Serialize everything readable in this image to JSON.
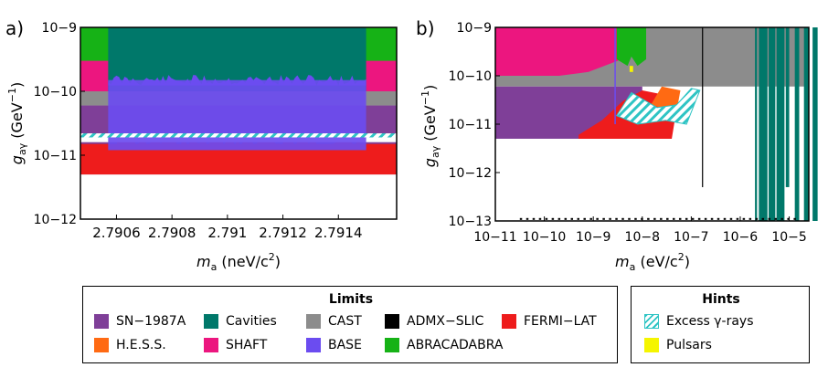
{
  "chart_data": [
    {
      "panel_label": "a)",
      "type": "area",
      "x_ticks": [
        "2.7906",
        "2.7908",
        "2.791",
        "2.7912",
        "2.7914"
      ],
      "x_tick_values": [
        2.7906,
        2.7908,
        2.791,
        2.7912,
        2.7914
      ],
      "xlim": [
        2.79047,
        2.79161
      ],
      "ylim_exponent": [
        -12,
        -9
      ],
      "y_ticks": [
        "10−12",
        "10−11",
        "10−10",
        "10−9"
      ],
      "xlabel": {
        "sym": "m",
        "sub": "a",
        "text": " (neV/c",
        "sup": "2",
        "end": ")"
      },
      "ylabel": {
        "sym": "g",
        "sub": "aγ",
        "text": " (GeV",
        "sup": "−1",
        "end": ")"
      },
      "regions": [
        {
          "name": "SN−1987A",
          "x": [
            2.79047,
            2.79161
          ],
          "g": [
            5e-12,
            6e-11
          ]
        },
        {
          "name": "CAST",
          "x": [
            2.79047,
            2.79161
          ],
          "g": [
            6e-11,
            1e-10
          ]
        },
        {
          "name": "FERMI−LAT",
          "x": [
            2.79047,
            2.79161
          ],
          "g": [
            5e-12,
            1.5e-11
          ]
        },
        {
          "name": "ABRACADABRA",
          "x": [
            2.79047,
            2.79161
          ],
          "g": [
            2e-10,
            1e-09
          ]
        },
        {
          "name": "Cavities",
          "x": [
            2.79057,
            2.7915
          ],
          "g": [
            1e-10,
            1e-09
          ]
        },
        {
          "name": "SHAFT",
          "x": [
            2.79047,
            2.79161
          ],
          "g": [
            8e-11,
            3e-10
          ]
        },
        {
          "name": "BASE",
          "x": [
            2.79057,
            2.7915
          ],
          "g": [
            1.2e-11,
            1.5e-10
          ]
        },
        {
          "name": "Excess γ-rays",
          "x": [
            2.79047,
            2.79161
          ],
          "g": [
            1.9e-11,
            2.2e-11
          ]
        }
      ]
    },
    {
      "panel_label": "b)",
      "type": "area",
      "x_scale": "log",
      "xlim_exponent": [
        -11,
        -4.6
      ],
      "x_ticks": [
        "10−11",
        "10−10",
        "10−9",
        "10−8",
        "10−7",
        "10−6",
        "10−5"
      ],
      "ylim_exponent": [
        -13,
        -9
      ],
      "y_ticks": [
        "10−13",
        "10−12",
        "10−11",
        "10−10",
        "10−9"
      ],
      "xlabel": {
        "sym": "m",
        "sub": "a",
        "text": " (eV/c",
        "sup": "2",
        "end": ")"
      },
      "ylabel": {
        "sym": "g",
        "sub": "aγ",
        "text": " (GeV",
        "sup": "−1",
        "end": ")"
      },
      "regions": [
        {
          "name": "SN−1987A",
          "mass_eV": [
            1e-11,
            1e-08
          ],
          "g": [
            5e-12,
            6e-11
          ]
        },
        {
          "name": "CAST",
          "mass_eV": [
            1e-11,
            2.5e-05
          ],
          "g": [
            6e-11,
            1e-09
          ]
        },
        {
          "name": "SHAFT",
          "mass_eV": [
            1e-11,
            8e-09
          ],
          "g": [
            1e-10,
            1e-09
          ]
        },
        {
          "name": "ABRACADABRA",
          "mass_eV": [
            3e-09,
            1.2e-08
          ],
          "g": [
            1.5e-10,
            1e-09
          ]
        },
        {
          "name": "FERMI−LAT",
          "mass_eV": [
            5e-10,
            5e-08
          ],
          "g": [
            5e-12,
            4e-11
          ]
        },
        {
          "name": "H.E.S.S.",
          "mass_eV": [
            1.5e-08,
            6e-08
          ],
          "g": [
            2e-11,
            5e-11
          ]
        },
        {
          "name": "Excess γ-rays",
          "mass_eV": [
            3e-09,
            1.5e-07
          ],
          "g": [
            1e-11,
            5e-11
          ]
        },
        {
          "name": "Cavities",
          "mass_eV": [
            2e-06,
            4e-05
          ],
          "g": [
            1e-13,
            1e-09
          ]
        },
        {
          "name": "ADMX−SLIC",
          "mass_eV": [
            1.7e-07,
            1.8e-07
          ],
          "g": [
            5e-13,
            1e-09
          ]
        },
        {
          "name": "BASE",
          "mass_eV": [
            2.79e-09,
            2.79e-09
          ],
          "g": [
            1e-11,
            1e-09
          ]
        }
      ]
    }
  ],
  "legends": {
    "limits": {
      "title": "Limits",
      "items": [
        {
          "label": "SN−1987A",
          "color": "#7f3f98"
        },
        {
          "label": "Cavities",
          "color": "#00786a"
        },
        {
          "label": "CAST",
          "color": "#8c8c8c"
        },
        {
          "label": "ADMX−SLIC",
          "color": "#000000"
        },
        {
          "label": "FERMI−LAT",
          "color": "#ee1c1c"
        },
        {
          "label": "H.E.S.S.",
          "color": "#ff6a13"
        },
        {
          "label": "SHAFT",
          "color": "#ec167f"
        },
        {
          "label": "BASE",
          "color": "#6b4cf0"
        },
        {
          "label": "ABRACADABRA",
          "color": "#16b216"
        }
      ]
    },
    "hints": {
      "title": "Hints",
      "items": [
        {
          "label": "Excess γ-rays",
          "color": "#2ec4c4"
        },
        {
          "label": "Pulsars",
          "color": "#f5f500"
        }
      ]
    }
  }
}
